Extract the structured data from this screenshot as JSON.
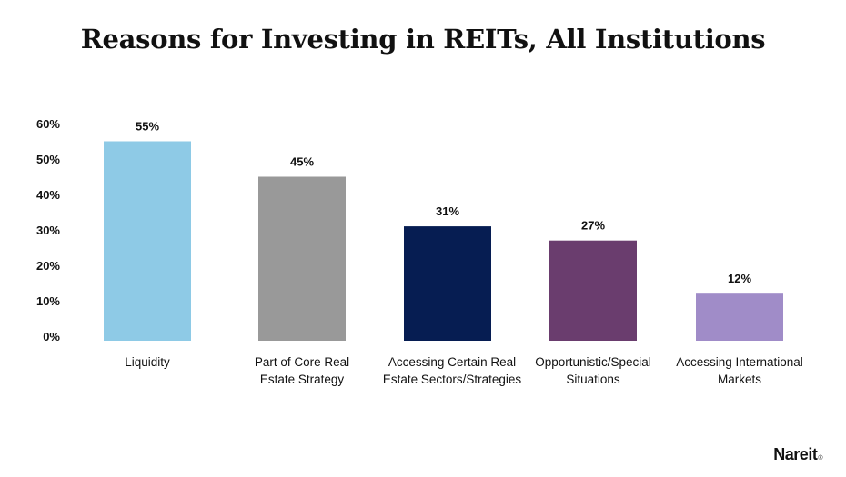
{
  "title": "Reasons for Investing in REITs, All Institutions",
  "brand": "Nareit",
  "brand_mark": "®",
  "chart_data": {
    "type": "bar",
    "title": "Reasons for Investing in REITs, All Institutions",
    "xlabel": "",
    "ylabel": "",
    "ylim": [
      0,
      60
    ],
    "y_ticks": [
      0,
      10,
      20,
      30,
      40,
      50,
      60
    ],
    "y_tick_labels": [
      "0%",
      "10%",
      "20%",
      "30%",
      "40%",
      "50%",
      "60%"
    ],
    "grid": false,
    "legend": "none",
    "categories": [
      [
        "Liquidity"
      ],
      [
        "Part of Core Real",
        "Estate Strategy"
      ],
      [
        "Accessing Certain Real",
        "Estate Sectors/Strategies"
      ],
      [
        "Opportunistic/Special",
        "Situations"
      ],
      [
        "Accessing International",
        "Markets"
      ]
    ],
    "values": [
      55,
      45,
      31,
      27,
      12
    ],
    "value_labels": [
      "55%",
      "45%",
      "31%",
      "27%",
      "12%"
    ],
    "colors": [
      "#8ecae6",
      "#999999",
      "#061d52",
      "#6a3d6e",
      "#a08cc8"
    ]
  }
}
